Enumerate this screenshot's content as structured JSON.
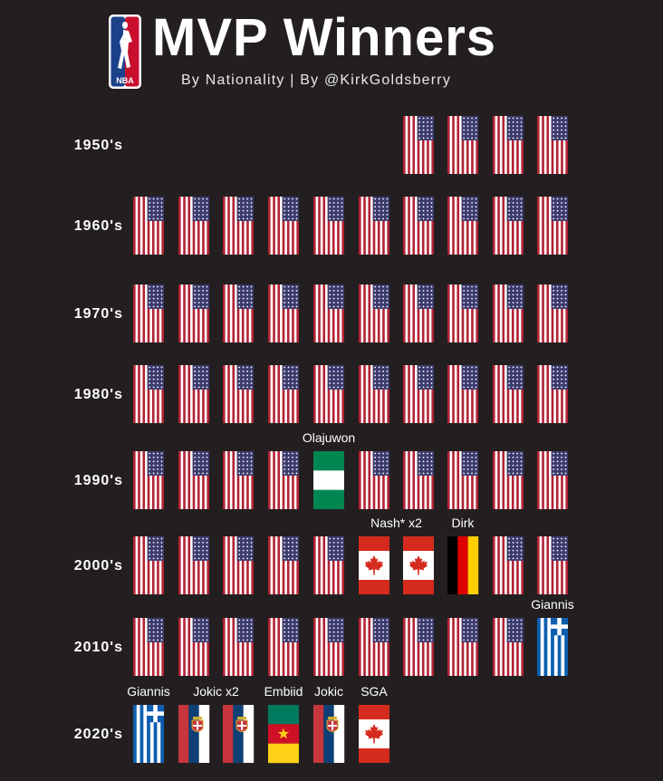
{
  "header": {
    "logo_text": "NBA",
    "title": "MVP Winners",
    "subtitle": "By Nationality | By @KirkGoldsberry"
  },
  "colors": {
    "background": "#231f20",
    "usa_red": "#b22234",
    "usa_blue": "#3c3b6e",
    "canada_red": "#d52b1e",
    "nigeria_green": "#008751",
    "greece_blue": "#0d5eaf",
    "germany_black": "#000000",
    "germany_red": "#dd0000",
    "germany_gold": "#ffce00",
    "serbia_red": "#c6363c",
    "serbia_blue": "#0c4076",
    "cameroon_green": "#007a5e",
    "cameroon_red": "#ce1126",
    "cameroon_yellow": "#fcd116"
  },
  "chart_data": {
    "type": "table",
    "rows": [
      {
        "label": "1950's",
        "winners": [
          {
            "slot": 6,
            "flag": "usa"
          },
          {
            "slot": 7,
            "flag": "usa"
          },
          {
            "slot": 8,
            "flag": "usa"
          },
          {
            "slot": 9,
            "flag": "usa"
          }
        ]
      },
      {
        "label": "1960's",
        "winners": [
          {
            "slot": 0,
            "flag": "usa"
          },
          {
            "slot": 1,
            "flag": "usa"
          },
          {
            "slot": 2,
            "flag": "usa"
          },
          {
            "slot": 3,
            "flag": "usa"
          },
          {
            "slot": 4,
            "flag": "usa"
          },
          {
            "slot": 5,
            "flag": "usa"
          },
          {
            "slot": 6,
            "flag": "usa"
          },
          {
            "slot": 7,
            "flag": "usa"
          },
          {
            "slot": 8,
            "flag": "usa"
          },
          {
            "slot": 9,
            "flag": "usa"
          }
        ]
      },
      {
        "label": "1970's",
        "winners": [
          {
            "slot": 0,
            "flag": "usa"
          },
          {
            "slot": 1,
            "flag": "usa"
          },
          {
            "slot": 2,
            "flag": "usa"
          },
          {
            "slot": 3,
            "flag": "usa"
          },
          {
            "slot": 4,
            "flag": "usa"
          },
          {
            "slot": 5,
            "flag": "usa"
          },
          {
            "slot": 6,
            "flag": "usa"
          },
          {
            "slot": 7,
            "flag": "usa"
          },
          {
            "slot": 8,
            "flag": "usa"
          },
          {
            "slot": 9,
            "flag": "usa"
          }
        ]
      },
      {
        "label": "1980's",
        "winners": [
          {
            "slot": 0,
            "flag": "usa"
          },
          {
            "slot": 1,
            "flag": "usa"
          },
          {
            "slot": 2,
            "flag": "usa"
          },
          {
            "slot": 3,
            "flag": "usa"
          },
          {
            "slot": 4,
            "flag": "usa"
          },
          {
            "slot": 5,
            "flag": "usa"
          },
          {
            "slot": 6,
            "flag": "usa"
          },
          {
            "slot": 7,
            "flag": "usa"
          },
          {
            "slot": 8,
            "flag": "usa"
          },
          {
            "slot": 9,
            "flag": "usa"
          }
        ]
      },
      {
        "label": "1990's",
        "winners": [
          {
            "slot": 0,
            "flag": "usa"
          },
          {
            "slot": 1,
            "flag": "usa"
          },
          {
            "slot": 2,
            "flag": "usa"
          },
          {
            "slot": 3,
            "flag": "usa"
          },
          {
            "slot": 4,
            "flag": "nigeria",
            "annotation": "Olajuwon"
          },
          {
            "slot": 5,
            "flag": "usa"
          },
          {
            "slot": 6,
            "flag": "usa"
          },
          {
            "slot": 7,
            "flag": "usa"
          },
          {
            "slot": 8,
            "flag": "usa"
          },
          {
            "slot": 9,
            "flag": "usa"
          }
        ]
      },
      {
        "label": "2000's",
        "winners": [
          {
            "slot": 0,
            "flag": "usa"
          },
          {
            "slot": 1,
            "flag": "usa"
          },
          {
            "slot": 2,
            "flag": "usa"
          },
          {
            "slot": 3,
            "flag": "usa"
          },
          {
            "slot": 4,
            "flag": "usa"
          },
          {
            "slot": 5,
            "flag": "canada",
            "annotation": "Nash* x2",
            "annotation_span": 2
          },
          {
            "slot": 6,
            "flag": "canada"
          },
          {
            "slot": 7,
            "flag": "germany",
            "annotation": "Dirk"
          },
          {
            "slot": 8,
            "flag": "usa"
          },
          {
            "slot": 9,
            "flag": "usa"
          }
        ]
      },
      {
        "label": "2010's",
        "winners": [
          {
            "slot": 0,
            "flag": "usa"
          },
          {
            "slot": 1,
            "flag": "usa"
          },
          {
            "slot": 2,
            "flag": "usa"
          },
          {
            "slot": 3,
            "flag": "usa"
          },
          {
            "slot": 4,
            "flag": "usa"
          },
          {
            "slot": 5,
            "flag": "usa"
          },
          {
            "slot": 6,
            "flag": "usa"
          },
          {
            "slot": 7,
            "flag": "usa"
          },
          {
            "slot": 8,
            "flag": "usa"
          },
          {
            "slot": 9,
            "flag": "greece",
            "annotation": "Giannis"
          }
        ]
      },
      {
        "label": "2020's",
        "winners": [
          {
            "slot": 0,
            "flag": "greece",
            "annotation": "Giannis"
          },
          {
            "slot": 1,
            "flag": "serbia",
            "annotation": "Jokic x2",
            "annotation_span": 2
          },
          {
            "slot": 2,
            "flag": "serbia"
          },
          {
            "slot": 3,
            "flag": "cameroon",
            "annotation": "Embiid"
          },
          {
            "slot": 4,
            "flag": "serbia",
            "annotation": "Jokic"
          },
          {
            "slot": 5,
            "flag": "canada",
            "annotation": "SGA"
          }
        ]
      }
    ]
  }
}
